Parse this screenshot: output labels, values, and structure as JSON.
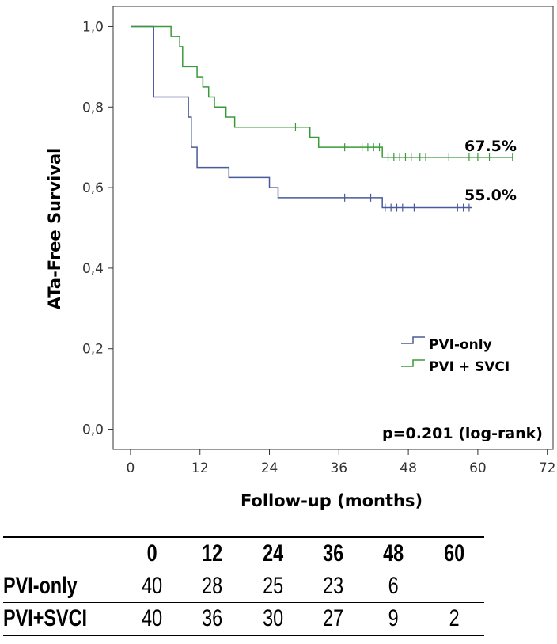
{
  "chart_data": {
    "type": "line",
    "subtype": "kaplan-meier",
    "xlabel": "Follow-up (months)",
    "ylabel": "ATa-Free Survival",
    "xlim": [
      -3,
      73
    ],
    "ylim": [
      -0.05,
      1.05
    ],
    "x_ticks": [
      0,
      12,
      24,
      36,
      48,
      60,
      72
    ],
    "y_ticks": [
      "1,0",
      "0,8",
      "0,6",
      "0,4",
      "0,2",
      "0,0"
    ],
    "y_tick_values": [
      1.0,
      0.8,
      0.6,
      0.4,
      0.2,
      0.0
    ],
    "grid": false,
    "legend_position": "bottom-right",
    "series": [
      {
        "name": "PVI-only",
        "color": "#4a5a9a",
        "steps": [
          [
            0,
            1.0
          ],
          [
            4,
            0.825
          ],
          [
            10,
            0.775
          ],
          [
            10.5,
            0.7
          ],
          [
            11.5,
            0.65
          ],
          [
            17,
            0.625
          ],
          [
            24,
            0.6
          ],
          [
            25.5,
            0.575
          ],
          [
            43.5,
            0.55
          ],
          [
            59,
            0.55
          ]
        ],
        "censored": [
          [
            37,
            0.575
          ],
          [
            41.5,
            0.575
          ],
          [
            44,
            0.55
          ],
          [
            45,
            0.55
          ],
          [
            46,
            0.55
          ],
          [
            47,
            0.55
          ],
          [
            49,
            0.55
          ],
          [
            56.5,
            0.55
          ],
          [
            57.5,
            0.55
          ],
          [
            58.5,
            0.55
          ]
        ]
      },
      {
        "name": "PVI + SVCI",
        "color": "#3a9a3a",
        "steps": [
          [
            0,
            1.0
          ],
          [
            7,
            0.975
          ],
          [
            8.5,
            0.95
          ],
          [
            9,
            0.9
          ],
          [
            11.5,
            0.875
          ],
          [
            12.5,
            0.85
          ],
          [
            13.5,
            0.825
          ],
          [
            14.5,
            0.8
          ],
          [
            16.5,
            0.775
          ],
          [
            18,
            0.75
          ],
          [
            31,
            0.725
          ],
          [
            32.5,
            0.7
          ],
          [
            43.5,
            0.675
          ],
          [
            66,
            0.675
          ]
        ],
        "censored": [
          [
            28.5,
            0.75
          ],
          [
            37,
            0.7
          ],
          [
            40,
            0.7
          ],
          [
            41,
            0.7
          ],
          [
            42,
            0.7
          ],
          [
            43,
            0.7
          ],
          [
            44.5,
            0.675
          ],
          [
            45.5,
            0.675
          ],
          [
            46.5,
            0.675
          ],
          [
            47.5,
            0.675
          ],
          [
            48.5,
            0.675
          ],
          [
            50,
            0.675
          ],
          [
            51,
            0.675
          ],
          [
            55,
            0.675
          ],
          [
            58.5,
            0.675
          ],
          [
            60,
            0.675
          ],
          [
            62,
            0.675
          ],
          [
            66,
            0.675
          ]
        ]
      }
    ],
    "annotations": [
      {
        "text": "67.5%",
        "series": "PVI + SVCI"
      },
      {
        "text": "55.0%",
        "series": "PVI-only"
      },
      {
        "text": "p=0.201 (log-rank)"
      }
    ],
    "risk_table": {
      "headers": [
        "0",
        "12",
        "24",
        "36",
        "48",
        "60"
      ],
      "rows": [
        {
          "group": "PVI-only",
          "values": [
            "40",
            "28",
            "25",
            "23",
            "6",
            ""
          ]
        },
        {
          "group": "PVI+SVCI",
          "values": [
            "40",
            "36",
            "30",
            "27",
            "9",
            "2"
          ]
        }
      ]
    }
  }
}
